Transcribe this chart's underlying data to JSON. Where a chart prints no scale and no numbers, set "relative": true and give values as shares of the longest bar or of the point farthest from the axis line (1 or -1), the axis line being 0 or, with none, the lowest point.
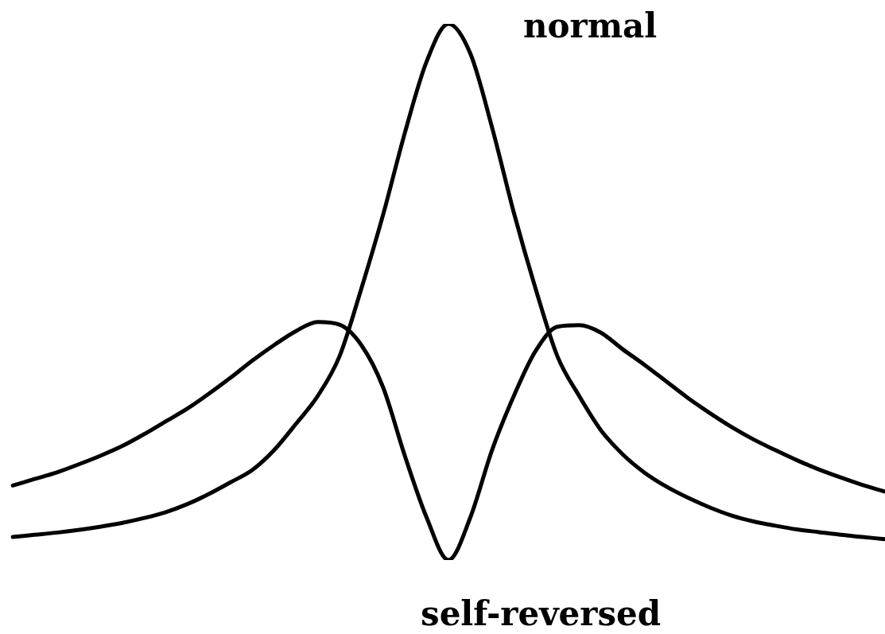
{
  "chart_data": {
    "type": "line",
    "relative": true,
    "categories": [
      null,
      null,
      null,
      null,
      null,
      null,
      null,
      null,
      null,
      null,
      null,
      null,
      null,
      null,
      null,
      null,
      null,
      null,
      null,
      null,
      null,
      null,
      null,
      null,
      null,
      null,
      null,
      null,
      null,
      null,
      null,
      null,
      null,
      null,
      null,
      null,
      null,
      null,
      null,
      null,
      null
    ],
    "series": [
      {
        "name": "normal",
        "color": "#000000",
        "values": [
          0.043,
          0.047,
          0.051,
          0.056,
          0.062,
          0.069,
          0.078,
          0.089,
          0.104,
          0.123,
          0.145,
          0.168,
          0.205,
          0.254,
          0.306,
          0.38,
          0.506,
          0.644,
          0.797,
          0.93,
          1,
          0.945,
          0.807,
          0.648,
          0.506,
          0.38,
          0.306,
          0.242,
          0.197,
          0.163,
          0.137,
          0.116,
          0.098,
          0.083,
          0.072,
          0.064,
          0.057,
          0.052,
          0.047,
          0.043,
          0.039
        ]
      },
      {
        "name": "self-reversed",
        "color": "#000000",
        "values": [
          0.139,
          0.151,
          0.163,
          0.178,
          0.194,
          0.212,
          0.234,
          0.258,
          0.282,
          0.31,
          0.34,
          0.372,
          0.401,
          0.427,
          0.444,
          0.439,
          0.401,
          0.322,
          0.194,
          0.079,
          0,
          0.079,
          0.205,
          0.306,
          0.39,
          0.435,
          0.438,
          0.424,
          0.393,
          0.364,
          0.333,
          0.302,
          0.274,
          0.248,
          0.225,
          0.205,
          0.186,
          0.169,
          0.154,
          0.14,
          0.128
        ]
      }
    ]
  }
}
